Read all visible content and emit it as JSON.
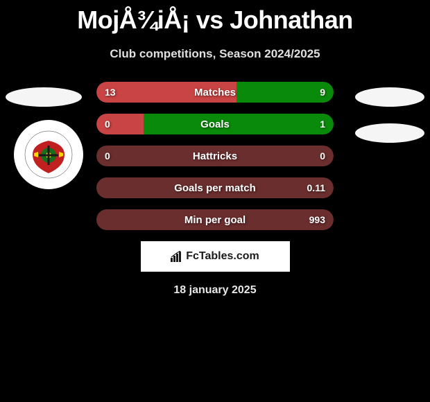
{
  "header": {
    "title": "MojÅ¾iÅ¡ vs Johnathan",
    "subtitle": "Club competitions, Season 2024/2025"
  },
  "colors": {
    "background": "#000000",
    "bar_left": "#c94444",
    "bar_right": "#0a8a0a",
    "bar_bg_dark": "#6b2e2e",
    "ellipse": "#f5f5f5",
    "text": "#ffffff"
  },
  "stats": [
    {
      "label": "Matches",
      "left_value": "13",
      "right_value": "9",
      "left_pct": 59,
      "right_pct": 41,
      "left_color": "#c94444",
      "right_color": "#0a8a0a"
    },
    {
      "label": "Goals",
      "left_value": "0",
      "right_value": "1",
      "left_pct": 20,
      "right_pct": 80,
      "left_color": "#c94444",
      "right_color": "#0a8a0a"
    },
    {
      "label": "Hattricks",
      "left_value": "0",
      "right_value": "0",
      "left_pct": 50,
      "right_pct": 50,
      "left_color": "#6b2e2e",
      "right_color": "#6b2e2e"
    },
    {
      "label": "Goals per match",
      "left_value": "",
      "right_value": "0.11",
      "left_pct": 0,
      "right_pct": 100,
      "left_color": "#6b2e2e",
      "right_color": "#6b2e2e"
    },
    {
      "label": "Min per goal",
      "left_value": "",
      "right_value": "993",
      "left_pct": 0,
      "right_pct": 100,
      "left_color": "#6b2e2e",
      "right_color": "#6b2e2e"
    }
  ],
  "brand": {
    "text": "FcTables.com"
  },
  "footer": {
    "date": "18 january 2025"
  },
  "logo": {
    "outer_color": "#ffffff",
    "ribbon_color": "#c02020",
    "center_color": "#1a6b1a",
    "accent_color": "#ffd700"
  }
}
